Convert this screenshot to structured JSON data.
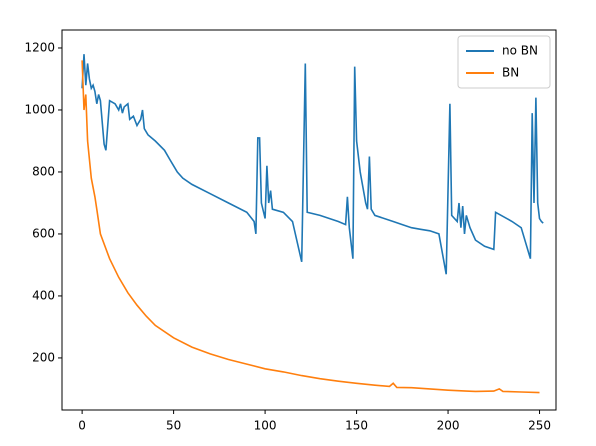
{
  "chart_data": {
    "type": "line",
    "series": [
      {
        "name": "no BN",
        "color": "#1f77b4",
        "x": [
          0,
          1,
          2,
          3,
          4,
          5,
          6,
          7,
          8,
          9,
          10,
          12,
          13,
          15,
          18,
          20,
          21,
          22,
          23,
          25,
          26,
          28,
          30,
          31,
          32,
          33,
          34,
          36,
          40,
          45,
          48,
          50,
          52,
          55,
          60,
          70,
          80,
          90,
          94,
          95,
          96,
          97,
          98,
          100,
          101,
          102,
          103,
          104,
          110,
          115,
          120,
          122,
          123,
          130,
          140,
          144,
          145,
          146,
          148,
          149,
          150,
          152,
          155,
          156,
          157,
          158,
          160,
          170,
          175,
          180,
          185,
          190,
          195,
          199,
          201,
          202,
          205,
          206,
          207,
          208,
          209,
          210,
          212,
          215,
          220,
          225,
          226,
          235,
          240,
          245,
          246,
          247,
          248,
          249,
          250,
          251,
          252
        ],
        "values": [
          1070,
          1180,
          1080,
          1150,
          1100,
          1070,
          1080,
          1060,
          1020,
          1050,
          1030,
          890,
          870,
          1030,
          1020,
          1000,
          1020,
          990,
          1010,
          1020,
          970,
          980,
          950,
          960,
          970,
          1000,
          940,
          920,
          900,
          870,
          840,
          820,
          800,
          780,
          760,
          730,
          700,
          670,
          640,
          600,
          910,
          910,
          700,
          650,
          820,
          700,
          740,
          680,
          670,
          640,
          510,
          1150,
          670,
          660,
          640,
          630,
          720,
          620,
          520,
          1140,
          900,
          800,
          700,
          680,
          850,
          680,
          660,
          640,
          630,
          620,
          615,
          610,
          600,
          470,
          1020,
          660,
          640,
          700,
          620,
          690,
          600,
          660,
          620,
          580,
          560,
          550,
          670,
          640,
          620,
          520,
          990,
          700,
          1040,
          700,
          650,
          640,
          635
        ]
      },
      {
        "name": "BN",
        "color": "#ff7f0e",
        "x": [
          0,
          1,
          2,
          3,
          5,
          7,
          8,
          10,
          15,
          20,
          25,
          30,
          35,
          40,
          50,
          60,
          70,
          80,
          90,
          100,
          110,
          120,
          130,
          140,
          150,
          160,
          168,
          170,
          172,
          180,
          190,
          200,
          210,
          215,
          225,
          228,
          230,
          240,
          250
        ],
        "values": [
          1160,
          1000,
          1050,
          900,
          780,
          720,
          680,
          600,
          520,
          460,
          410,
          370,
          335,
          305,
          265,
          235,
          213,
          195,
          180,
          165,
          155,
          143,
          133,
          125,
          118,
          112,
          108,
          118,
          105,
          104,
          100,
          96,
          93,
          92,
          93,
          100,
          92,
          90,
          88
        ]
      }
    ],
    "xlim": [
      -11,
      259
    ],
    "xticks": [
      0,
      50,
      100,
      150,
      200,
      250
    ],
    "ylim": [
      32,
      1258
    ],
    "yticks": [
      200,
      400,
      600,
      800,
      1000,
      1200
    ],
    "legend": "upper right"
  }
}
